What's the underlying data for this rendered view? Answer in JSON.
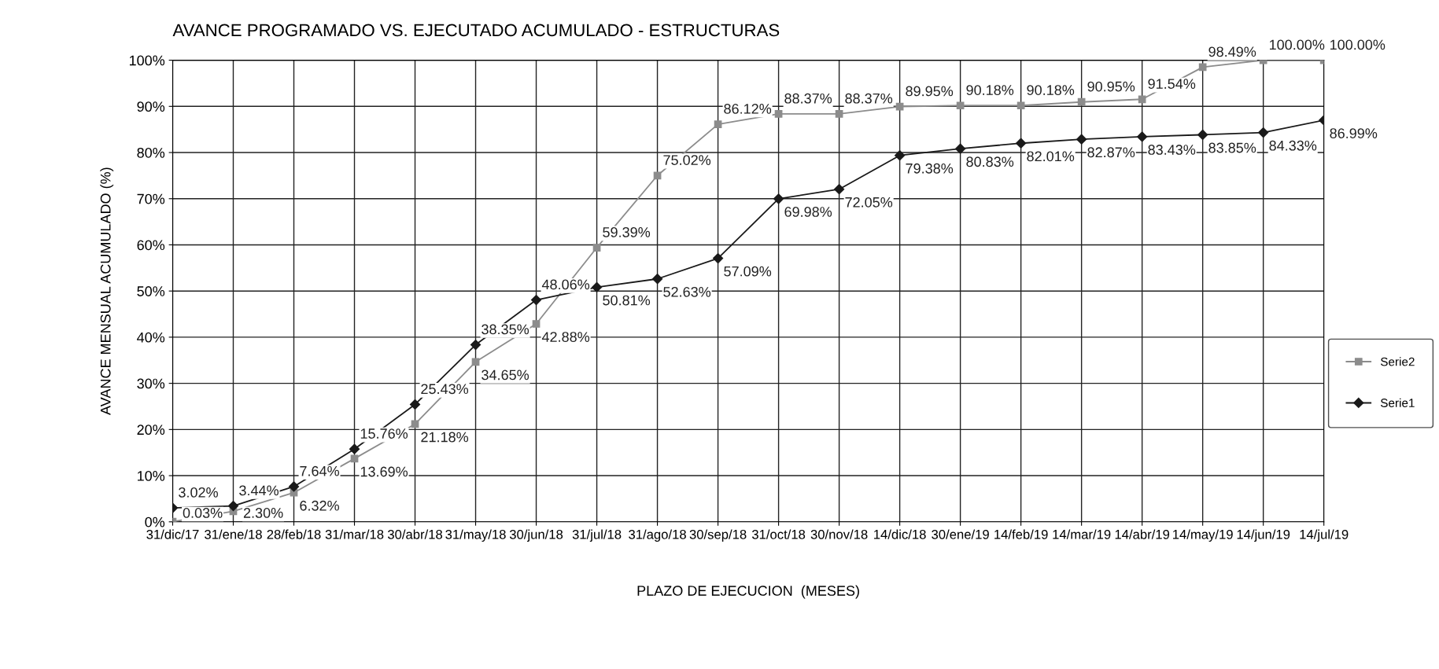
{
  "chart_data": {
    "type": "line",
    "title": "AVANCE PROGRAMADO VS. EJECUTADO ACUMULADO - ESTRUCTURAS",
    "xlabel": "PLAZO DE EJECUCION  (MESES)",
    "ylabel": "AVANCE MENSUAL ACUMULADO (%)",
    "categories": [
      "31/dic/17",
      "31/ene/18",
      "28/feb/18",
      "31/mar/18",
      "30/abr/18",
      "31/may/18",
      "30/jun/18",
      "31/jul/18",
      "31/ago/18",
      "30/sep/18",
      "31/oct/18",
      "30/nov/18",
      "14/dic/18",
      "30/ene/19",
      "14/feb/19",
      "14/mar/19",
      "14/abr/19",
      "14/may/19",
      "14/jun/19",
      "14/jul/19"
    ],
    "series": [
      {
        "name": "Serie2",
        "color": "#8c8c8c",
        "marker": "square",
        "values": [
          0.03,
          2.3,
          6.32,
          13.69,
          21.18,
          34.65,
          42.88,
          59.39,
          75.02,
          86.12,
          88.37,
          88.37,
          89.95,
          90.18,
          90.18,
          90.95,
          91.54,
          98.49,
          100.0,
          100.0
        ],
        "value_labels": [
          "0.03%",
          "2.30%",
          "6.32%",
          "13.69%",
          "21.18%",
          "34.65%",
          "42.88%",
          "59.39%",
          "75.02%",
          "86.12%",
          "88.37%",
          "88.37%",
          "89.95%",
          "90.18%",
          "90.18%",
          "90.95%",
          "91.54%",
          "98.49%",
          "100.00%",
          "100.00%"
        ]
      },
      {
        "name": "Serie1",
        "color": "#1a1a1a",
        "marker": "diamond",
        "values": [
          3.02,
          3.44,
          7.64,
          15.76,
          25.43,
          38.35,
          48.06,
          50.81,
          52.63,
          57.09,
          69.98,
          72.05,
          79.38,
          80.83,
          82.01,
          82.87,
          83.43,
          83.85,
          84.33,
          86.99
        ],
        "value_labels": [
          "3.02%",
          "3.44%",
          "7.64%",
          "15.76%",
          "25.43%",
          "38.35%",
          "48.06%",
          "50.81%",
          "52.63%",
          "57.09%",
          "69.98%",
          "72.05%",
          "79.38%",
          "80.83%",
          "82.01%",
          "82.87%",
          "83.43%",
          "83.85%",
          "84.33%",
          "86.99%"
        ]
      }
    ],
    "ylim": [
      0,
      100
    ],
    "yticks": [
      {
        "value": 0,
        "label": "0%"
      },
      {
        "value": 10,
        "label": "10%"
      },
      {
        "value": 20,
        "label": "20%"
      },
      {
        "value": 30,
        "label": "30%"
      },
      {
        "value": 40,
        "label": "40%"
      },
      {
        "value": 50,
        "label": "50%"
      },
      {
        "value": 60,
        "label": "60%"
      },
      {
        "value": 70,
        "label": "70%"
      },
      {
        "value": 80,
        "label": "80%"
      },
      {
        "value": 90,
        "label": "90%"
      },
      {
        "value": 100,
        "label": "100%"
      }
    ],
    "grid": true,
    "legend": "right",
    "line_style": "solid"
  }
}
